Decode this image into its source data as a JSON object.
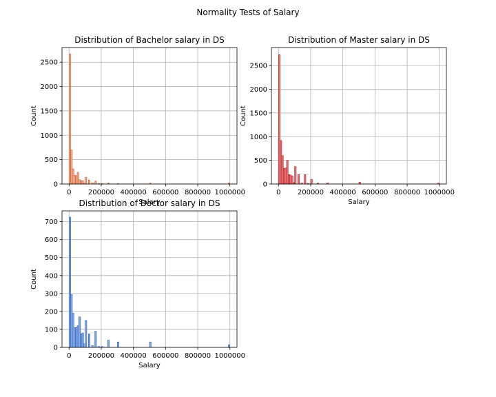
{
  "figure": {
    "suptitle": "Normality Tests of Salary"
  },
  "chart_data": [
    {
      "type": "bar",
      "title": "Distribution of Bachelor salary in DS",
      "xlabel": "Salary",
      "ylabel": "Count",
      "color": "#f4a582",
      "edge_color": "#c0603a",
      "grid": true,
      "xlim": [
        -44000,
        1044000
      ],
      "ylim": [
        0,
        2800
      ],
      "xticks": [
        0,
        200000,
        400000,
        600000,
        800000,
        1000000
      ],
      "xtick_labels": [
        "0",
        "200000",
        "400000",
        "600000",
        "800000",
        "1000000"
      ],
      "yticks": [
        0,
        500,
        1000,
        1500,
        2000,
        2500
      ],
      "ytick_labels": [
        "0",
        "500",
        "1000",
        "1500",
        "2000",
        "2500"
      ],
      "bin_width": 10000,
      "bins_x": [
        0,
        10000,
        20000,
        30000,
        40000,
        50000,
        60000,
        70000,
        80000,
        90000,
        100000,
        120000,
        140000,
        160000,
        180000,
        200000,
        240000,
        300000,
        500000,
        990000
      ],
      "bins_y": [
        2670,
        700,
        310,
        180,
        170,
        240,
        90,
        70,
        70,
        20,
        140,
        80,
        20,
        60,
        10,
        10,
        20,
        10,
        20,
        20
      ]
    },
    {
      "type": "bar",
      "title": "Distribution of Master salary in DS",
      "xlabel": "Salary",
      "ylabel": "Count",
      "color": "#e8686b",
      "edge_color": "#a82a2f",
      "grid": true,
      "xlim": [
        -44000,
        1044000
      ],
      "ylim": [
        0,
        2880
      ],
      "xticks": [
        0,
        200000,
        400000,
        600000,
        800000,
        1000000
      ],
      "xtick_labels": [
        "0",
        "200000",
        "400000",
        "600000",
        "800000",
        "1000000"
      ],
      "yticks": [
        0,
        500,
        1000,
        1500,
        2000,
        2500
      ],
      "ytick_labels": [
        "0",
        "500",
        "1000",
        "1500",
        "2000",
        "2500"
      ],
      "bin_width": 10000,
      "bins_x": [
        0,
        10000,
        20000,
        30000,
        40000,
        50000,
        60000,
        70000,
        80000,
        90000,
        100000,
        120000,
        140000,
        160000,
        180000,
        200000,
        240000,
        300000,
        500000,
        990000
      ],
      "bins_y": [
        2730,
        920,
        600,
        330,
        340,
        500,
        200,
        190,
        170,
        30,
        370,
        200,
        20,
        200,
        10,
        100,
        20,
        20,
        40,
        20
      ]
    },
    {
      "type": "bar",
      "title": "Distribution of Doctor salary in DS",
      "xlabel": "Salary",
      "ylabel": "Count",
      "color": "#7ea6e8",
      "edge_color": "#2a5cb8",
      "grid": true,
      "xlim": [
        -44000,
        1044000
      ],
      "ylim": [
        0,
        760
      ],
      "xticks": [
        0,
        200000,
        400000,
        600000,
        800000,
        1000000
      ],
      "xtick_labels": [
        "0",
        "200000",
        "400000",
        "600000",
        "800000",
        "1000000"
      ],
      "yticks": [
        0,
        100,
        200,
        300,
        400,
        500,
        600,
        700
      ],
      "ytick_labels": [
        "0",
        "100",
        "200",
        "300",
        "400",
        "500",
        "600",
        "700"
      ],
      "bin_width": 10000,
      "bins_x": [
        0,
        10000,
        20000,
        30000,
        40000,
        50000,
        60000,
        70000,
        80000,
        90000,
        100000,
        120000,
        140000,
        160000,
        180000,
        200000,
        240000,
        300000,
        500000,
        990000
      ],
      "bins_y": [
        725,
        295,
        190,
        110,
        110,
        120,
        170,
        75,
        80,
        20,
        150,
        75,
        10,
        90,
        5,
        5,
        40,
        30,
        30,
        15
      ]
    }
  ]
}
